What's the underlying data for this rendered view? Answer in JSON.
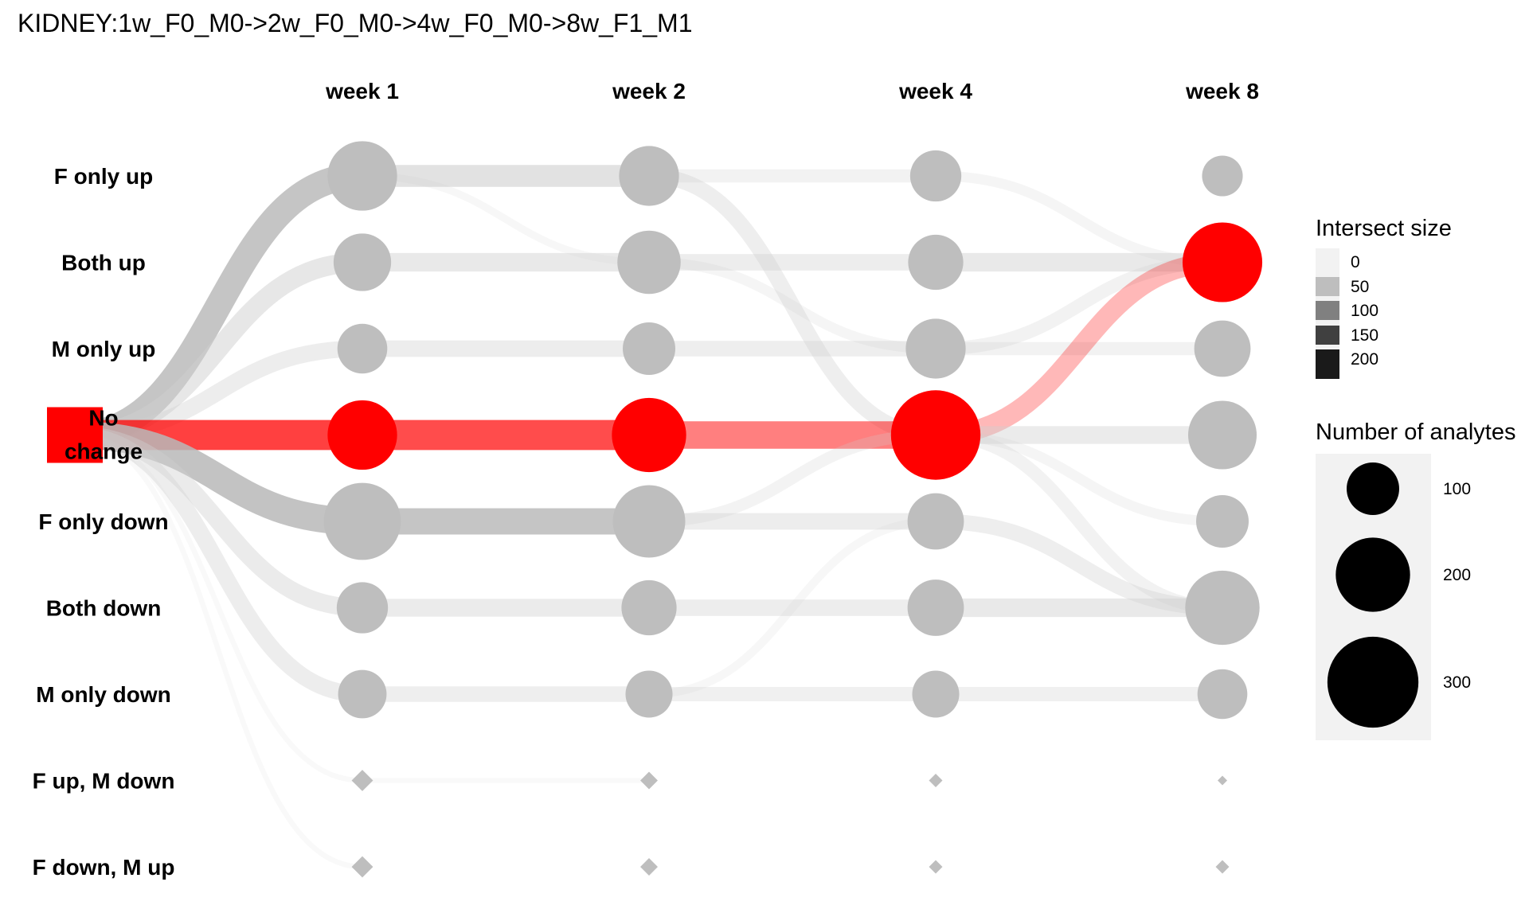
{
  "chart_data": {
    "type": "alluvial-dot",
    "title": "KIDNEY:1w_F0_M0->2w_F0_M0->4w_F0_M0->8w_F1_M1",
    "columns": [
      "week 1",
      "week 2",
      "week 4",
      "week 8"
    ],
    "rows": [
      "F only up",
      "Both up",
      "M only up",
      "No change",
      "F only down",
      "Both down",
      "M only down",
      "F up, M down",
      "F down, M up"
    ],
    "origin_label": "No change",
    "highlight_color": "#ff0000",
    "base_color": "#bebebe",
    "nodes": [
      {
        "column": "origin",
        "row": "No change",
        "shape": "square",
        "highlight": true
      },
      {
        "column": "week 1",
        "row": "F only up",
        "size": 175,
        "shape": "circle",
        "highlight": false
      },
      {
        "column": "week 1",
        "row": "Both up",
        "size": 120,
        "shape": "circle",
        "highlight": false
      },
      {
        "column": "week 1",
        "row": "M only up",
        "size": 90,
        "shape": "circle",
        "highlight": false
      },
      {
        "column": "week 1",
        "row": "No change",
        "size": 175,
        "shape": "circle",
        "highlight": true
      },
      {
        "column": "week 1",
        "row": "F only down",
        "size": 215,
        "shape": "circle",
        "highlight": false
      },
      {
        "column": "week 1",
        "row": "Both down",
        "size": 95,
        "shape": "circle",
        "highlight": false
      },
      {
        "column": "week 1",
        "row": "M only down",
        "size": 85,
        "shape": "circle",
        "highlight": false
      },
      {
        "column": "week 1",
        "row": "F up, M down",
        "size": 4,
        "shape": "diamond",
        "highlight": false
      },
      {
        "column": "week 1",
        "row": "F down, M up",
        "size": 4,
        "shape": "diamond",
        "highlight": false
      },
      {
        "column": "week 2",
        "row": "F only up",
        "size": 130,
        "shape": "circle",
        "highlight": false
      },
      {
        "column": "week 2",
        "row": "Both up",
        "size": 145,
        "shape": "circle",
        "highlight": false
      },
      {
        "column": "week 2",
        "row": "M only up",
        "size": 100,
        "shape": "circle",
        "highlight": false
      },
      {
        "column": "week 2",
        "row": "No change",
        "size": 200,
        "shape": "circle",
        "highlight": true
      },
      {
        "column": "week 2",
        "row": "F only down",
        "size": 190,
        "shape": "circle",
        "highlight": false
      },
      {
        "column": "week 2",
        "row": "Both down",
        "size": 110,
        "shape": "circle",
        "highlight": false
      },
      {
        "column": "week 2",
        "row": "M only down",
        "size": 80,
        "shape": "circle",
        "highlight": false
      },
      {
        "column": "week 2",
        "row": "F up, M down",
        "size": 3,
        "shape": "diamond",
        "highlight": false
      },
      {
        "column": "week 2",
        "row": "F down, M up",
        "size": 3,
        "shape": "diamond",
        "highlight": false
      },
      {
        "column": "week 4",
        "row": "F only up",
        "size": 95,
        "shape": "circle",
        "highlight": false
      },
      {
        "column": "week 4",
        "row": "Both up",
        "size": 110,
        "shape": "circle",
        "highlight": false
      },
      {
        "column": "week 4",
        "row": "M only up",
        "size": 130,
        "shape": "circle",
        "highlight": false
      },
      {
        "column": "week 4",
        "row": "No change",
        "size": 290,
        "shape": "circle",
        "highlight": true
      },
      {
        "column": "week 4",
        "row": "F only down",
        "size": 115,
        "shape": "circle",
        "highlight": false
      },
      {
        "column": "week 4",
        "row": "Both down",
        "size": 115,
        "shape": "circle",
        "highlight": false
      },
      {
        "column": "week 4",
        "row": "M only down",
        "size": 80,
        "shape": "circle",
        "highlight": false
      },
      {
        "column": "week 4",
        "row": "F up, M down",
        "size": 2,
        "shape": "diamond",
        "highlight": false
      },
      {
        "column": "week 4",
        "row": "F down, M up",
        "size": 2,
        "shape": "diamond",
        "highlight": false
      },
      {
        "column": "week 8",
        "row": "F only up",
        "size": 60,
        "shape": "circle",
        "highlight": false
      },
      {
        "column": "week 8",
        "row": "Both up",
        "size": 230,
        "shape": "circle",
        "highlight": true
      },
      {
        "column": "week 8",
        "row": "M only up",
        "size": 115,
        "shape": "circle",
        "highlight": false
      },
      {
        "column": "week 8",
        "row": "No change",
        "size": 170,
        "shape": "circle",
        "highlight": false
      },
      {
        "column": "week 8",
        "row": "F only down",
        "size": 100,
        "shape": "circle",
        "highlight": false
      },
      {
        "column": "week 8",
        "row": "Both down",
        "size": 200,
        "shape": "circle",
        "highlight": false
      },
      {
        "column": "week 8",
        "row": "M only down",
        "size": 90,
        "shape": "circle",
        "highlight": false
      },
      {
        "column": "week 8",
        "row": "F up, M down",
        "size": 1,
        "shape": "diamond",
        "highlight": false
      },
      {
        "column": "week 8",
        "row": "F down, M up",
        "size": 2,
        "shape": "diamond",
        "highlight": false
      }
    ],
    "flows": [
      {
        "from": [
          "origin",
          "No change"
        ],
        "to": [
          "week 1",
          "F only up"
        ],
        "value": 100
      },
      {
        "from": [
          "origin",
          "No change"
        ],
        "to": [
          "week 1",
          "Both up"
        ],
        "value": 55
      },
      {
        "from": [
          "origin",
          "No change"
        ],
        "to": [
          "week 1",
          "M only up"
        ],
        "value": 40
      },
      {
        "from": [
          "origin",
          "No change"
        ],
        "to": [
          "week 1",
          "No change"
        ],
        "value": 130,
        "highlight": true,
        "opacity": 0.75
      },
      {
        "from": [
          "origin",
          "No change"
        ],
        "to": [
          "week 1",
          "F only down"
        ],
        "value": 110
      },
      {
        "from": [
          "origin",
          "No change"
        ],
        "to": [
          "week 1",
          "Both down"
        ],
        "value": 45
      },
      {
        "from": [
          "origin",
          "No change"
        ],
        "to": [
          "week 1",
          "M only down"
        ],
        "value": 40
      },
      {
        "from": [
          "origin",
          "No change"
        ],
        "to": [
          "week 1",
          "F up, M down"
        ],
        "value": 4
      },
      {
        "from": [
          "origin",
          "No change"
        ],
        "to": [
          "week 1",
          "F down, M up"
        ],
        "value": 4
      },
      {
        "from": [
          "week 1",
          "F only up"
        ],
        "to": [
          "week 2",
          "F only up"
        ],
        "value": 70
      },
      {
        "from": [
          "week 1",
          "F only up"
        ],
        "to": [
          "week 2",
          "Both up"
        ],
        "value": 8
      },
      {
        "from": [
          "week 1",
          "Both up"
        ],
        "to": [
          "week 2",
          "Both up"
        ],
        "value": 50
      },
      {
        "from": [
          "week 1",
          "M only up"
        ],
        "to": [
          "week 2",
          "M only up"
        ],
        "value": 40
      },
      {
        "from": [
          "week 1",
          "No change"
        ],
        "to": [
          "week 2",
          "No change"
        ],
        "value": 130,
        "highlight": true,
        "opacity": 0.7
      },
      {
        "from": [
          "week 1",
          "F only down"
        ],
        "to": [
          "week 2",
          "F only down"
        ],
        "value": 100
      },
      {
        "from": [
          "week 1",
          "Both down"
        ],
        "to": [
          "week 2",
          "Both down"
        ],
        "value": 45
      },
      {
        "from": [
          "week 1",
          "M only down"
        ],
        "to": [
          "week 2",
          "M only down"
        ],
        "value": 35
      },
      {
        "from": [
          "week 1",
          "F up, M down"
        ],
        "to": [
          "week 2",
          "F up, M down"
        ],
        "value": 3
      },
      {
        "from": [
          "week 2",
          "F only up"
        ],
        "to": [
          "week 4",
          "F only up"
        ],
        "value": 25
      },
      {
        "from": [
          "week 2",
          "F only up"
        ],
        "to": [
          "week 4",
          "No change"
        ],
        "value": 35
      },
      {
        "from": [
          "week 2",
          "Both up"
        ],
        "to": [
          "week 4",
          "Both up"
        ],
        "value": 40
      },
      {
        "from": [
          "week 2",
          "Both up"
        ],
        "to": [
          "week 4",
          "M only up"
        ],
        "value": 15
      },
      {
        "from": [
          "week 2",
          "M only up"
        ],
        "to": [
          "week 4",
          "M only up"
        ],
        "value": 35
      },
      {
        "from": [
          "week 2",
          "No change"
        ],
        "to": [
          "week 4",
          "No change"
        ],
        "value": 110,
        "highlight": true,
        "opacity": 0.5
      },
      {
        "from": [
          "week 2",
          "F only down"
        ],
        "to": [
          "week 4",
          "F only down"
        ],
        "value": 40
      },
      {
        "from": [
          "week 2",
          "F only down"
        ],
        "to": [
          "week 4",
          "No change"
        ],
        "value": 20
      },
      {
        "from": [
          "week 2",
          "Both down"
        ],
        "to": [
          "week 4",
          "Both down"
        ],
        "value": 40
      },
      {
        "from": [
          "week 2",
          "M only down"
        ],
        "to": [
          "week 4",
          "M only down"
        ],
        "value": 30
      },
      {
        "from": [
          "week 2",
          "M only down"
        ],
        "to": [
          "week 4",
          "F only down"
        ],
        "value": 10
      },
      {
        "from": [
          "week 4",
          "F only up"
        ],
        "to": [
          "week 8",
          "Both up"
        ],
        "value": 15
      },
      {
        "from": [
          "week 4",
          "Both up"
        ],
        "to": [
          "week 8",
          "Both up"
        ],
        "value": 50
      },
      {
        "from": [
          "week 4",
          "M only up"
        ],
        "to": [
          "week 8",
          "Both up"
        ],
        "value": 25
      },
      {
        "from": [
          "week 4",
          "M only up"
        ],
        "to": [
          "week 8",
          "M only up"
        ],
        "value": 25
      },
      {
        "from": [
          "week 4",
          "No change"
        ],
        "to": [
          "week 8",
          "Both up"
        ],
        "value": 55,
        "highlight": true,
        "opacity": 0.28
      },
      {
        "from": [
          "week 4",
          "No change"
        ],
        "to": [
          "week 8",
          "No change"
        ],
        "value": 45
      },
      {
        "from": [
          "week 4",
          "No change"
        ],
        "to": [
          "week 8",
          "Both down"
        ],
        "value": 25
      },
      {
        "from": [
          "week 4",
          "No change"
        ],
        "to": [
          "week 8",
          "F only down"
        ],
        "value": 15
      },
      {
        "from": [
          "week 4",
          "F only down"
        ],
        "to": [
          "week 8",
          "Both down"
        ],
        "value": 35
      },
      {
        "from": [
          "week 4",
          "Both down"
        ],
        "to": [
          "week 8",
          "Both down"
        ],
        "value": 50
      },
      {
        "from": [
          "week 4",
          "M only down"
        ],
        "to": [
          "week 8",
          "M only down"
        ],
        "value": 30
      }
    ],
    "legend_intersect": {
      "title": "Intersect size",
      "ticks": [
        0,
        50,
        100,
        150,
        200
      ],
      "placement": "right"
    },
    "legend_size": {
      "title": "Number of analytes",
      "ticks": [
        100,
        200,
        300
      ],
      "placement": "right"
    }
  }
}
